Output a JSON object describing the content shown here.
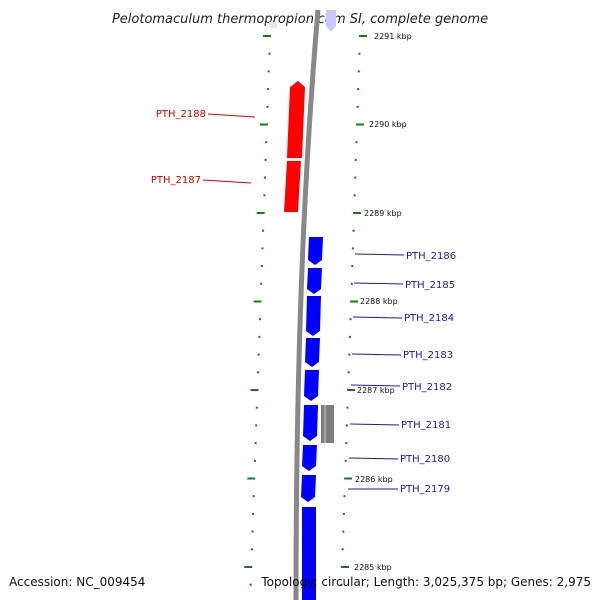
{
  "title": "Pelotomaculum thermopropionicum SI, complete genome",
  "footer": {
    "accession": "Accession: NC_009454",
    "topology": "Topology: circular; Length: 3,025,375 bp; Genes: 2,975"
  },
  "scale_labels": [
    "2291 kbp",
    "2290 kbp",
    "2289 kbp",
    "2288 kbp",
    "2287 kbp",
    "2286 kbp",
    "2285 kbp"
  ],
  "genes_reverse": [
    "PTH_2188",
    "PTH_2187"
  ],
  "genes_forward": [
    "PTH_2186",
    "PTH_2185",
    "PTH_2184",
    "PTH_2183",
    "PTH_2182",
    "PTH_2181",
    "PTH_2180",
    "PTH_2179"
  ],
  "colors": {
    "reverse_strand": "#ff0000",
    "forward_strand": "#0000ff",
    "other_feature": "#808080",
    "backbone": "#808080",
    "ticks": "#1a7a1a"
  }
}
